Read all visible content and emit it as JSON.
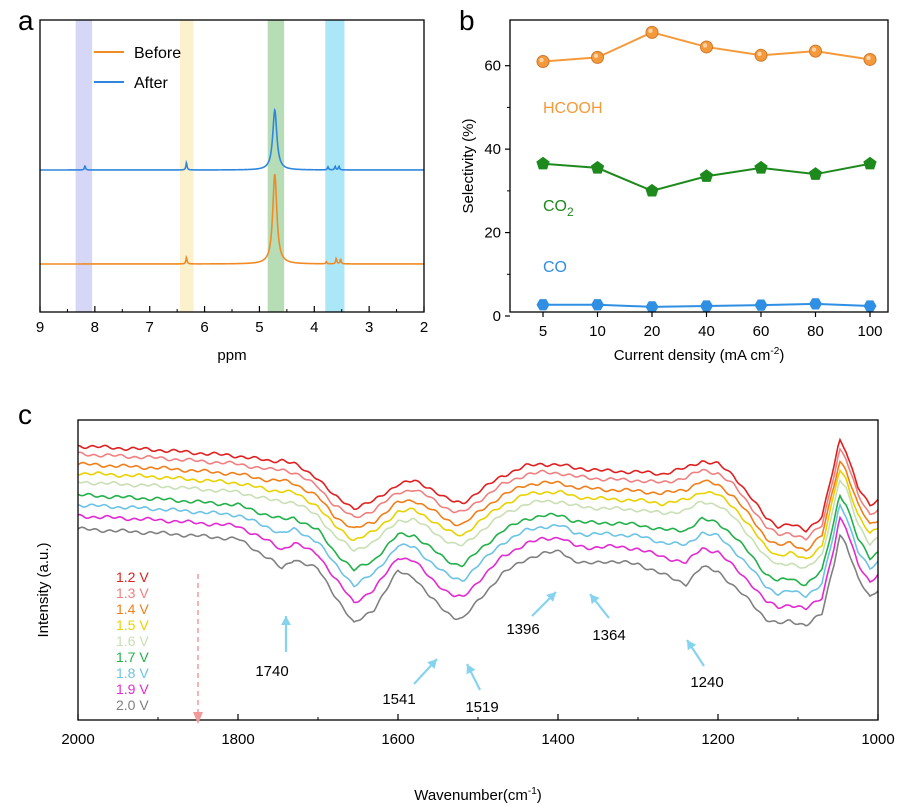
{
  "colors": {
    "before": "#F08A24",
    "after": "#2E86DE",
    "hcooh": "#F59A3B",
    "co2": "#1E8A1E",
    "co": "#2F8FE3",
    "band_purple": "#CFCFF5",
    "band_yellow": "#FCEFC4",
    "band_green": "#A9D7A9",
    "band_cyan": "#9EE3F7"
  },
  "chart_data": [
    {
      "panel": "a",
      "type": "line",
      "xlabel": "ppm",
      "xlim": [
        9,
        2
      ],
      "x_ticks": [
        "9",
        "8",
        "7",
        "6",
        "5",
        "4",
        "3",
        "2"
      ],
      "highlight_bands_ppm": [
        [
          8.35,
          8.05
        ],
        [
          6.45,
          6.2
        ],
        [
          4.85,
          4.55
        ],
        [
          3.8,
          3.45
        ]
      ],
      "legend": [
        "Before",
        "After"
      ],
      "series": [
        {
          "name": "Before",
          "color_key": "before",
          "peaks": [
            {
              "ppm": 6.33,
              "height": 0.22
            },
            {
              "ppm": 4.72,
              "height": 3.0
            },
            {
              "ppm": 3.78,
              "height": 0.07
            },
            {
              "ppm": 3.6,
              "height": 0.18
            },
            {
              "ppm": 3.52,
              "height": 0.16
            }
          ]
        },
        {
          "name": "After",
          "color_key": "after",
          "peaks": [
            {
              "ppm": 8.18,
              "height": 0.14
            },
            {
              "ppm": 6.33,
              "height": 0.25
            },
            {
              "ppm": 4.72,
              "height": 2.0
            },
            {
              "ppm": 3.75,
              "height": 0.1
            },
            {
              "ppm": 3.62,
              "height": 0.12
            },
            {
              "ppm": 3.55,
              "height": 0.12
            }
          ]
        }
      ]
    },
    {
      "panel": "b",
      "type": "line",
      "xlabel": "Current density (mA cm",
      "xlabel_sup": "-2",
      "xlabel_end": ")",
      "ylabel": "Selectivity (%)",
      "ylim": [
        0,
        70
      ],
      "y_ticks": [
        0,
        20,
        40,
        60
      ],
      "categories": [
        "5",
        "10",
        "20",
        "40",
        "60",
        "80",
        "100"
      ],
      "series": [
        {
          "name": "HCOOH",
          "color_key": "hcooh",
          "marker": "circle",
          "values": [
            61,
            62,
            68,
            64.5,
            62.5,
            63.5,
            61.5
          ]
        },
        {
          "name": "CO2",
          "label": "CO",
          "label_sub": "2",
          "color_key": "co2",
          "marker": "pentagon",
          "values": [
            36.5,
            35.5,
            30,
            33.5,
            35.5,
            34,
            36.5
          ]
        },
        {
          "name": "CO",
          "color_key": "co",
          "marker": "hexagon",
          "values": [
            2.7,
            2.7,
            2.2,
            2.4,
            2.6,
            2.9,
            2.4
          ]
        }
      ]
    },
    {
      "panel": "c",
      "type": "line",
      "xlabel": "Wavenumber(cm",
      "xlabel_sup": "-1",
      "xlabel_end": ")",
      "ylabel": "Intensity (a.u.)",
      "xlim": [
        2000,
        1000
      ],
      "x_ticks": [
        2000,
        1800,
        1600,
        1400,
        1200,
        1000
      ],
      "legend": [
        {
          "label": "1.2 V",
          "color": "#E02020"
        },
        {
          "label": "1.3 V",
          "color": "#F08080"
        },
        {
          "label": "1.4 V",
          "color": "#F07F1A"
        },
        {
          "label": "1.5 V",
          "color": "#E8D200"
        },
        {
          "label": "1.6 V",
          "color": "#C9DFB4"
        },
        {
          "label": "1.7 V",
          "color": "#22B04A"
        },
        {
          "label": "1.8 V",
          "color": "#6CC3E4"
        },
        {
          "label": "1.9 V",
          "color": "#E22AD2"
        },
        {
          "label": "2.0 V",
          "color": "#808080"
        }
      ],
      "annotations": [
        "1740",
        "1541",
        "1519",
        "1396",
        "1364",
        "1240"
      ],
      "wavenumber_points": [
        2000,
        1900,
        1800,
        1760,
        1745,
        1730,
        1700,
        1680,
        1655,
        1630,
        1600,
        1580,
        1560,
        1541,
        1530,
        1519,
        1500,
        1470,
        1440,
        1420,
        1396,
        1380,
        1364,
        1340,
        1300,
        1270,
        1240,
        1220,
        1200,
        1180,
        1160,
        1140,
        1125,
        1110,
        1090,
        1070,
        1055,
        1048,
        1040,
        1025,
        1010,
        1000
      ],
      "base_shape": [
        0,
        -4,
        -10,
        -15,
        -14,
        -18,
        -32,
        -50,
        -62,
        -55,
        -38,
        -35,
        -42,
        -52,
        -56,
        -57,
        -46,
        -30,
        -20,
        -18,
        -19,
        -22,
        -23,
        -25,
        -26,
        -28,
        -22,
        -15,
        -18,
        -30,
        -50,
        -72,
        -80,
        -78,
        -85,
        -70,
        -20,
        5,
        -5,
        -40,
        -60,
        -55
      ],
      "extra_shape": [
        0,
        -4,
        -10,
        -30,
        -40,
        -30,
        -40,
        -65,
        -95,
        -80,
        -42,
        -48,
        -68,
        -82,
        -88,
        -90,
        -72,
        -45,
        -30,
        -25,
        -22,
        -32,
        -35,
        -32,
        -35,
        -45,
        -55,
        -38,
        -42,
        -58,
        -72,
        -90,
        -95,
        -92,
        -96,
        -85,
        -35,
        -5,
        -15,
        -50,
        -68,
        -60
      ],
      "offsets": [
        0,
        8,
        18,
        27,
        36,
        49,
        59,
        70,
        83
      ],
      "extra_weights": [
        0,
        0.05,
        0.1,
        0.15,
        0.2,
        0.4,
        0.55,
        0.75,
        1.0
      ]
    }
  ]
}
